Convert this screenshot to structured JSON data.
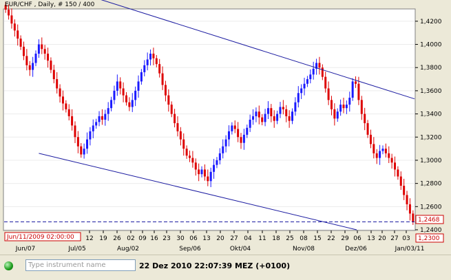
{
  "chart_title": "EUR/CHF , Daily, # 150 / 400",
  "crosshair_date": "Jun/11/2009 02:00:00",
  "y_axis": {
    "ticks": [
      "1,4200",
      "1,4000",
      "1,3800",
      "1,3600",
      "1,3400",
      "1,3200",
      "1,3000",
      "1,2800",
      "1,2600",
      "1,2400"
    ],
    "current_price": "1,2468",
    "cursor_price": "1,2300"
  },
  "x_axis": {
    "day_ticks": [
      "12",
      "19",
      "26",
      "02",
      "09",
      "16",
      "23",
      "30",
      "06",
      "13",
      "20",
      "27",
      "04",
      "11",
      "18",
      "25",
      "08",
      "15",
      "22",
      "29",
      "06",
      "13",
      "20",
      "27",
      "03"
    ],
    "month_labels": [
      "Jun/07",
      "Jul/05",
      "Aug/02",
      "Sep/06",
      "Okt/04",
      "Nov/08",
      "Dez/06",
      "Jan/03/11"
    ]
  },
  "status_bar": {
    "search_placeholder": "Type instrument name",
    "timestamp": "22 Dez 2010 22:07:39  MEZ (+0100)"
  },
  "colors": {
    "up_candle": "#1a1aff",
    "down_candle": "#dd0000",
    "channel_line": "#1a1aa0",
    "price_line": "#1a1aa0",
    "label_border": "#cc0000"
  },
  "chart_data": {
    "type": "candlestick",
    "ylim": [
      1.24,
      1.43
    ],
    "current_price": 1.2468,
    "closes": [
      1.43,
      1.425,
      1.418,
      1.412,
      1.405,
      1.398,
      1.39,
      1.382,
      1.378,
      1.384,
      1.392,
      1.4,
      1.396,
      1.392,
      1.386,
      1.378,
      1.37,
      1.362,
      1.355,
      1.349,
      1.344,
      1.338,
      1.33,
      1.32,
      1.312,
      1.305,
      1.31,
      1.318,
      1.325,
      1.33,
      1.333,
      1.338,
      1.335,
      1.34,
      1.345,
      1.352,
      1.36,
      1.368,
      1.362,
      1.356,
      1.35,
      1.346,
      1.352,
      1.36,
      1.368,
      1.376,
      1.382,
      1.387,
      1.392,
      1.388,
      1.383,
      1.375,
      1.365,
      1.356,
      1.348,
      1.34,
      1.332,
      1.325,
      1.318,
      1.31,
      1.304,
      1.302,
      1.298,
      1.292,
      1.288,
      1.292,
      1.286,
      1.282,
      1.29,
      1.296,
      1.3,
      1.306,
      1.312,
      1.318,
      1.325,
      1.33,
      1.327,
      1.32,
      1.315,
      1.322,
      1.328,
      1.335,
      1.338,
      1.342,
      1.337,
      1.333,
      1.34,
      1.345,
      1.338,
      1.334,
      1.34,
      1.346,
      1.344,
      1.338,
      1.334,
      1.342,
      1.35,
      1.358,
      1.362,
      1.366,
      1.37,
      1.374,
      1.379,
      1.384,
      1.38,
      1.372,
      1.362,
      1.352,
      1.344,
      1.336,
      1.342,
      1.348,
      1.345,
      1.348,
      1.354,
      1.368,
      1.366,
      1.352,
      1.34,
      1.332,
      1.322,
      1.314,
      1.306,
      1.302,
      1.308,
      1.31,
      1.306,
      1.302,
      1.298,
      1.292,
      1.286,
      1.278,
      1.27,
      1.262,
      1.254,
      1.247
    ],
    "channel_upper": {
      "start": [
        0,
        1.438
      ],
      "end": [
        149,
        1.353
      ]
    },
    "channel_lower": {
      "start": [
        11,
        1.306
      ],
      "end": [
        149,
        1.228
      ]
    }
  }
}
